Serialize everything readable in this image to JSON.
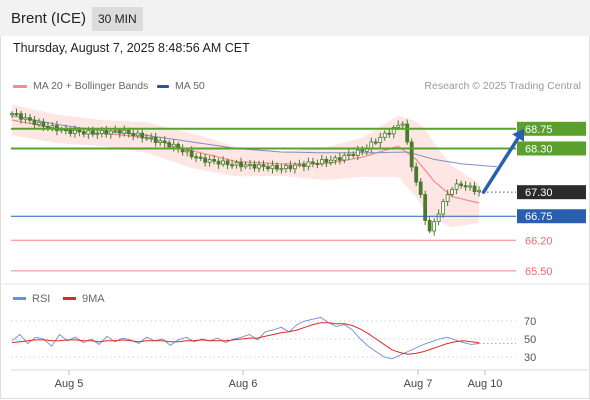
{
  "header": {
    "instrument": "Brent (ICE)",
    "timeframe": "30 MIN",
    "datetime": "Thursday, August 7, 2025 8:48:56 AM CET"
  },
  "legend": {
    "ma20_label": "MA 20 + Bollinger Bands",
    "ma50_label": "MA 50",
    "research": "Research © 2025 Trading Central"
  },
  "rsi_legend": {
    "rsi_label": "RSI",
    "ma_label": "9MA"
  },
  "colors": {
    "ma20": "#f08c8c",
    "ma50": "#2f5597",
    "band_fill": "#fde3e1",
    "candle": "#4a7a2c",
    "resistance": "#5aa02c",
    "pivot": "#2a5fb0",
    "support": "#ef6a6a",
    "arrow": "#2a5fb0",
    "rsi": "#6a8fd6",
    "rsi_ma": "#e02828"
  },
  "chart_data": [
    {
      "type": "candlestick",
      "title": "Brent (ICE) 30 MIN",
      "x_ticks": [
        "Aug 5",
        "Aug 6",
        "Aug 7",
        "Aug 10"
      ],
      "ylim": [
        65.2,
        69.5
      ],
      "last_price": 67.3,
      "levels": [
        {
          "value": 68.75,
          "label": "68.75",
          "kind": "resistance"
        },
        {
          "value": 68.3,
          "label": "68.30",
          "kind": "resistance"
        },
        {
          "value": 67.3,
          "label": "67.30",
          "kind": "last"
        },
        {
          "value": 66.75,
          "label": "66.75",
          "kind": "pivot"
        },
        {
          "value": 66.2,
          "label": "66.20",
          "kind": "support"
        },
        {
          "value": 65.5,
          "label": "65.50",
          "kind": "support"
        }
      ],
      "series": [
        {
          "name": "MA 20 + Bollinger Bands"
        },
        {
          "name": "MA 50"
        }
      ],
      "close_path": [
        [
          0,
          69.1
        ],
        [
          6,
          68.85
        ],
        [
          12,
          68.7
        ],
        [
          18,
          68.65
        ],
        [
          24,
          68.7
        ],
        [
          30,
          68.55
        ],
        [
          36,
          68.35
        ],
        [
          42,
          68.05
        ],
        [
          48,
          67.95
        ],
        [
          54,
          67.9
        ],
        [
          60,
          67.85
        ],
        [
          66,
          67.95
        ],
        [
          72,
          68.05
        ],
        [
          78,
          68.25
        ],
        [
          82,
          68.55
        ],
        [
          85,
          68.75
        ],
        [
          87,
          68.9
        ],
        [
          88,
          68.4
        ],
        [
          89,
          67.9
        ],
        [
          90,
          67.55
        ],
        [
          91,
          67.2
        ],
        [
          92,
          66.7
        ],
        [
          93,
          66.4
        ],
        [
          94,
          66.6
        ],
        [
          95,
          66.85
        ],
        [
          96,
          67.05
        ],
        [
          97,
          67.25
        ],
        [
          98,
          67.4
        ],
        [
          100,
          67.48
        ],
        [
          102,
          67.4
        ],
        [
          104,
          67.32
        ]
      ],
      "ma20_path": [
        [
          0,
          68.95
        ],
        [
          10,
          68.75
        ],
        [
          20,
          68.65
        ],
        [
          30,
          68.55
        ],
        [
          40,
          68.25
        ],
        [
          50,
          68.0
        ],
        [
          60,
          67.95
        ],
        [
          70,
          67.95
        ],
        [
          78,
          68.1
        ],
        [
          86,
          68.35
        ],
        [
          90,
          68.05
        ],
        [
          94,
          67.55
        ],
        [
          98,
          67.2
        ],
        [
          104,
          67.05
        ]
      ],
      "ma50_path": [
        [
          0,
          69.05
        ],
        [
          10,
          68.85
        ],
        [
          20,
          68.7
        ],
        [
          30,
          68.6
        ],
        [
          40,
          68.45
        ],
        [
          50,
          68.3
        ],
        [
          60,
          68.22
        ],
        [
          70,
          68.2
        ],
        [
          80,
          68.2
        ],
        [
          88,
          68.22
        ],
        [
          94,
          68.05
        ],
        [
          100,
          67.95
        ],
        [
          108,
          67.88
        ]
      ],
      "band_half_width": [
        [
          0,
          0.35
        ],
        [
          20,
          0.3
        ],
        [
          40,
          0.4
        ],
        [
          60,
          0.28
        ],
        [
          78,
          0.45
        ],
        [
          86,
          0.7
        ],
        [
          92,
          0.95
        ],
        [
          98,
          0.7
        ],
        [
          104,
          0.45
        ]
      ],
      "forecast": {
        "from": [
          105,
          67.3
        ],
        "to": [
          114,
          68.75
        ]
      }
    },
    {
      "type": "line",
      "title": "RSI",
      "y_ticks": [
        70,
        50,
        30
      ],
      "ylim": [
        20,
        80
      ],
      "series": [
        {
          "name": "RSI",
          "values": [
            48,
            55,
            45,
            52,
            50,
            42,
            55,
            48,
            52,
            46,
            50,
            44,
            53,
            47,
            51,
            49,
            45,
            52,
            48,
            50,
            43,
            49,
            52,
            47,
            50,
            48,
            51,
            46,
            50,
            52,
            55,
            49,
            58,
            60,
            63,
            58,
            66,
            70,
            72,
            74,
            68,
            64,
            66,
            60,
            50,
            42,
            36,
            30,
            28,
            32,
            36,
            40,
            44,
            47,
            50,
            52,
            49,
            46,
            44,
            45
          ]
        },
        {
          "name": "9MA",
          "values": [
            46,
            47,
            48,
            49,
            49,
            48,
            48,
            49,
            49,
            48,
            48,
            47,
            48,
            48,
            49,
            48,
            47,
            48,
            48,
            48,
            47,
            47,
            48,
            48,
            49,
            48,
            48,
            48,
            49,
            50,
            51,
            51,
            53,
            55,
            57,
            58,
            60,
            63,
            66,
            68,
            68,
            67,
            67,
            65,
            61,
            56,
            50,
            44,
            38,
            35,
            33,
            34,
            36,
            39,
            42,
            45,
            47,
            48,
            47,
            46
          ]
        }
      ]
    }
  ]
}
